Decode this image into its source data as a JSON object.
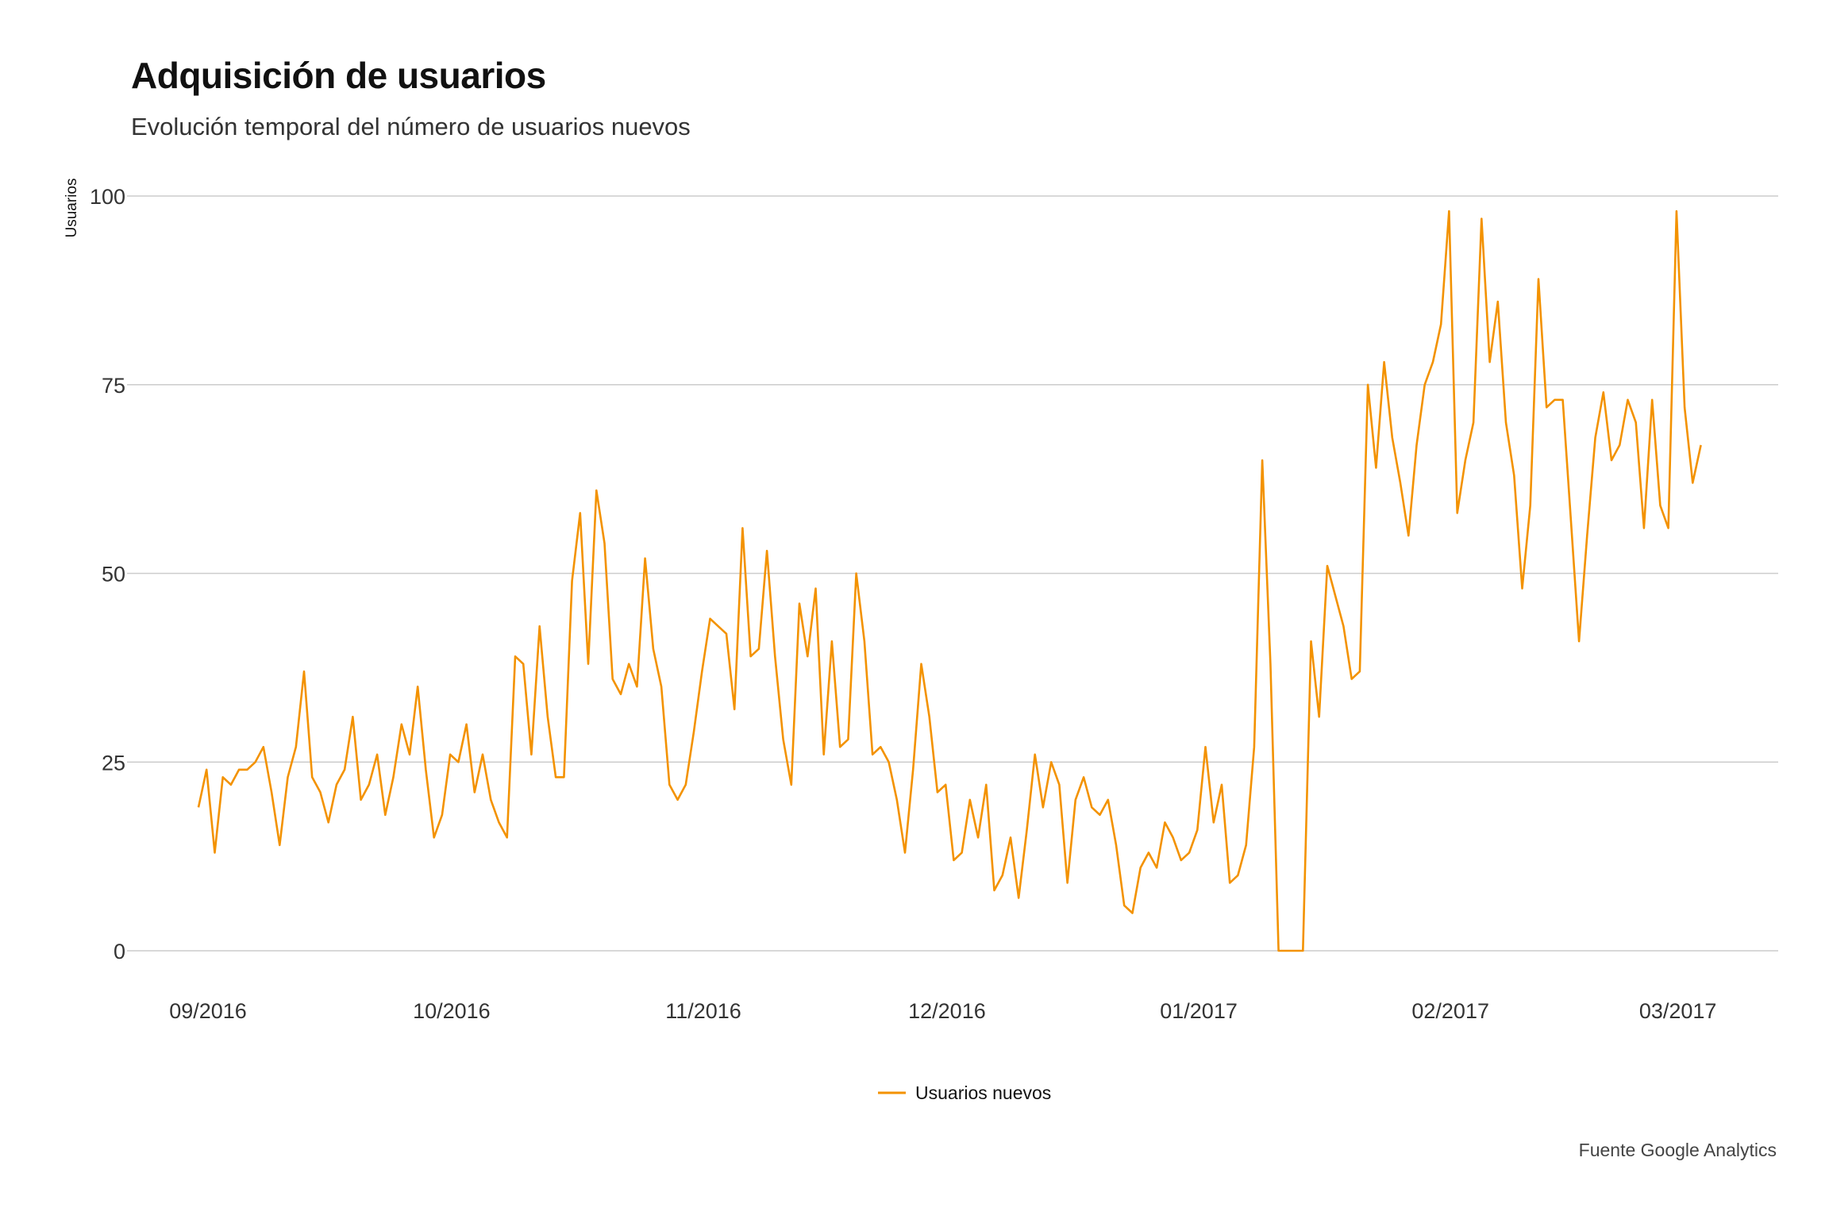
{
  "header": {
    "title": "Adquisición de usuarios",
    "subtitle": "Evolución temporal del número de usuarios nuevos"
  },
  "footer": {
    "source": "Fuente Google Analytics"
  },
  "colors": {
    "series": "#f39200",
    "grid": "#cccccc"
  },
  "chart_data": {
    "type": "line",
    "title": "Adquisición de usuarios",
    "subtitle": "Evolución temporal del número de usuarios nuevos",
    "ylabel": "Usuarios",
    "xlabel": "",
    "ylim": [
      0,
      100
    ],
    "yticks": [
      0,
      25,
      50,
      75,
      100
    ],
    "xticks": [
      "09/2016",
      "10/2016",
      "11/2016",
      "12/2016",
      "01/2017",
      "02/2017",
      "03/2017"
    ],
    "grid": true,
    "legend_position": "bottom-center",
    "x_start": "2016-09-01",
    "series": [
      {
        "name": "Usuarios nuevos",
        "color": "#f39200",
        "values": [
          19,
          24,
          13,
          23,
          22,
          24,
          24,
          25,
          27,
          21,
          14,
          23,
          27,
          37,
          23,
          21,
          17,
          22,
          24,
          31,
          20,
          22,
          26,
          18,
          23,
          30,
          26,
          35,
          24,
          15,
          18,
          26,
          25,
          30,
          21,
          26,
          20,
          17,
          15,
          39,
          38,
          26,
          43,
          31,
          23,
          23,
          49,
          58,
          38,
          61,
          54,
          36,
          34,
          38,
          35,
          52,
          40,
          35,
          22,
          20,
          22,
          29,
          37,
          44,
          43,
          42,
          32,
          56,
          39,
          40,
          53,
          39,
          28,
          22,
          46,
          39,
          48,
          26,
          41,
          27,
          28,
          50,
          41,
          26,
          27,
          25,
          20,
          13,
          24,
          38,
          31,
          21,
          22,
          12,
          13,
          20,
          15,
          22,
          8,
          10,
          15,
          7,
          16,
          26,
          19,
          25,
          22,
          9,
          20,
          23,
          19,
          18,
          20,
          14,
          6,
          5,
          11,
          13,
          11,
          17,
          15,
          12,
          13,
          16,
          27,
          17,
          22,
          9,
          10,
          14,
          27,
          65,
          38,
          0,
          0,
          0,
          0,
          41,
          31,
          51,
          47,
          43,
          36,
          37,
          75,
          64,
          78,
          68,
          62,
          55,
          67,
          75,
          78,
          83,
          98,
          58,
          65,
          70,
          97,
          78,
          86,
          70,
          63,
          48,
          59,
          89,
          72,
          73,
          73,
          57,
          41,
          55,
          68,
          74,
          65,
          67,
          73,
          70,
          56,
          73,
          59,
          56,
          98,
          72,
          62,
          67
        ]
      }
    ]
  }
}
